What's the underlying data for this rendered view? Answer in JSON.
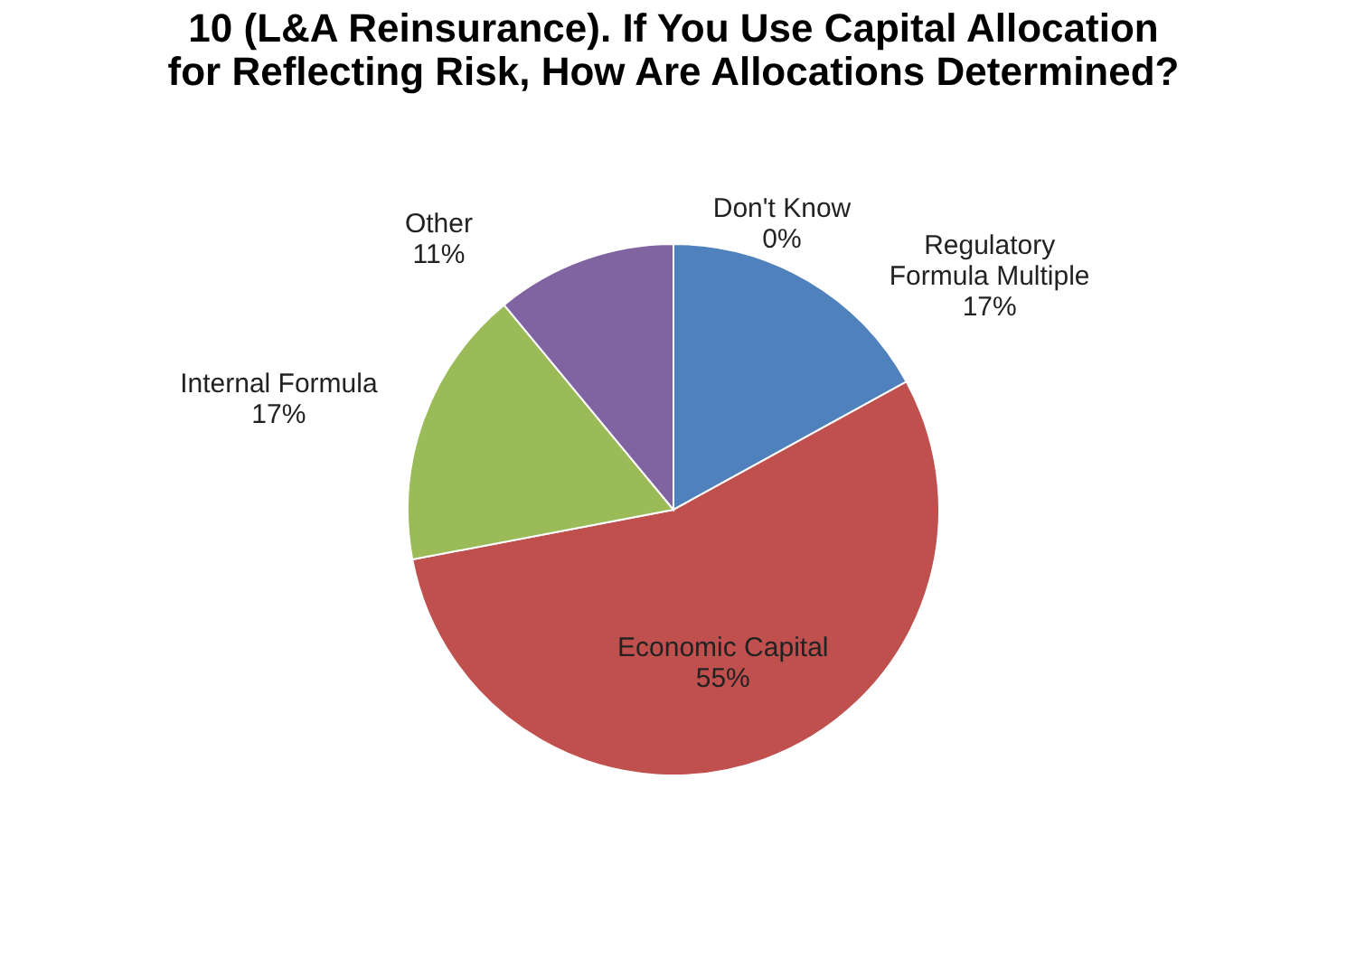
{
  "chart_data": {
    "type": "pie",
    "title": [
      "10 (L&A Reinsurance). If You Use Capital Allocation",
      "for Reflecting Risk, How Are Allocations Determined?"
    ],
    "categories": [
      "Regulatory Formula Multiple",
      "Economic Capital",
      "Internal Formula",
      "Other",
      "Don't Know"
    ],
    "values": [
      17,
      55,
      17,
      11,
      0
    ],
    "colors": [
      "#4f81bd",
      "#c0504d",
      "#9bbb59",
      "#8064a2",
      "#4bacc6"
    ],
    "value_labels": [
      "17%",
      "55%",
      "17%",
      "11%",
      "0%"
    ],
    "legend": false
  }
}
